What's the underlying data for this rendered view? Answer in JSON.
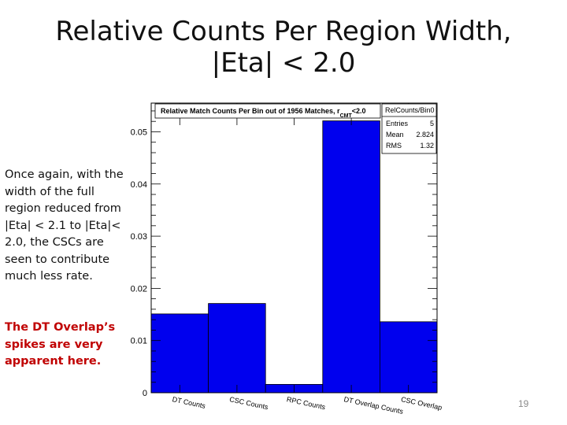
{
  "slide": {
    "title_line1": "Relative Counts Per Region Width,",
    "title_line2": "|Eta| < 2.0",
    "body": "Once again, with the width of the full region reduced from |Eta| < 2.1 to |Eta|< 2.0, the CSCs are seen to contribute much less rate.",
    "note": "The DT Overlap’s spikes are very apparent here.",
    "page_number": "19"
  },
  "chart_data": {
    "type": "bar",
    "title": "Relative Match Counts Per Bin out of 1956 Matches,",
    "title_cut": "<2.0",
    "title_subscript": "CMT",
    "categories": [
      "DT Counts",
      "CSC Counts",
      "RPC Counts",
      "DT Overlap Counts",
      "CSC Overlap"
    ],
    "values": [
      0.0151,
      0.0171,
      0.0016,
      0.0521,
      0.0136
    ],
    "ylim": [
      0,
      0.0555
    ],
    "ytick_values": [
      0,
      0.01,
      0.02,
      0.03,
      0.04,
      0.05
    ],
    "ytick_labels": [
      "0",
      "0.01",
      "0.02",
      "0.03",
      "0.04",
      "0.05"
    ],
    "bar_color": "#0000ee",
    "stats_box": {
      "name": "RelCounts/Bin0",
      "rows": [
        {
          "label": "Entries",
          "value": "5"
        },
        {
          "label": "Mean",
          "value": "2.824"
        },
        {
          "label": "RMS",
          "value": "1.32"
        }
      ]
    }
  }
}
